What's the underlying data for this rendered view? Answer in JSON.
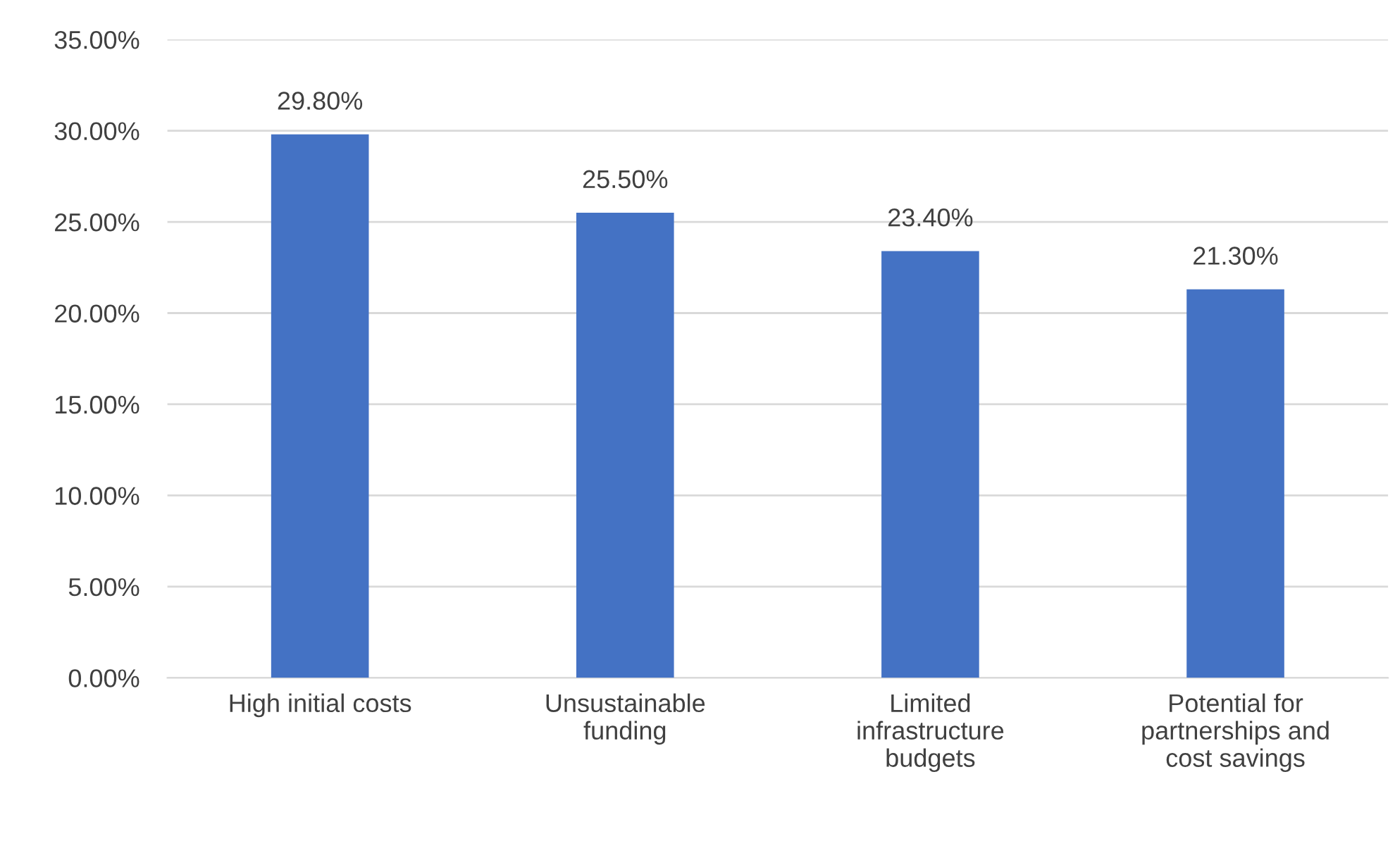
{
  "chart_data": {
    "type": "bar",
    "categories": [
      "High initial costs",
      "Unsustainable\nfunding",
      "Limited\ninfrastructure\nbudgets",
      "Potential for\npartnerships and\ncost savings"
    ],
    "values": [
      29.8,
      25.5,
      23.4,
      21.3
    ],
    "value_labels": [
      "29.80%",
      "25.50%",
      "23.40%",
      "21.30%"
    ],
    "color": "#4472c4",
    "ylim": [
      0,
      35
    ],
    "yticks": [
      {
        "value": 0,
        "label": "0.00%"
      },
      {
        "value": 5,
        "label": "5.00%"
      },
      {
        "value": 10,
        "label": "10.00%"
      },
      {
        "value": 15,
        "label": "15.00%"
      },
      {
        "value": 20,
        "label": "20.00%"
      },
      {
        "value": 25,
        "label": "25.00%"
      },
      {
        "value": 30,
        "label": "30.00%"
      },
      {
        "value": 35,
        "label": "35.00%"
      }
    ],
    "grid": "y",
    "legend": false
  }
}
